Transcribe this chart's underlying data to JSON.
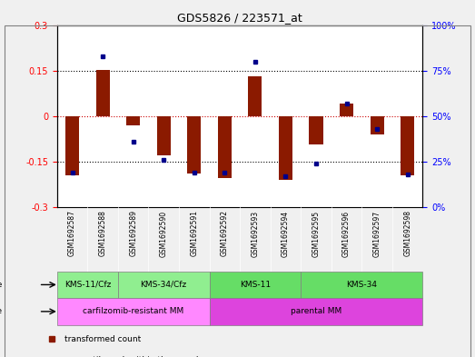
{
  "title": "GDS5826 / 223571_at",
  "samples": [
    "GSM1692587",
    "GSM1692588",
    "GSM1692589",
    "GSM1692590",
    "GSM1692591",
    "GSM1692592",
    "GSM1692593",
    "GSM1692594",
    "GSM1692595",
    "GSM1692596",
    "GSM1692597",
    "GSM1692598"
  ],
  "transformed_counts": [
    -0.195,
    0.152,
    -0.03,
    -0.13,
    -0.19,
    -0.205,
    0.13,
    -0.21,
    -0.095,
    0.04,
    -0.06,
    -0.195
  ],
  "percentile_ranks": [
    19,
    83,
    36,
    26,
    19,
    19,
    80,
    17,
    24,
    57,
    43,
    18
  ],
  "ylim_left": [
    -0.3,
    0.3
  ],
  "ylim_right": [
    0,
    100
  ],
  "yticks_left": [
    -0.3,
    -0.15,
    0,
    0.15,
    0.3
  ],
  "yticks_right": [
    0,
    25,
    50,
    75,
    100
  ],
  "bar_color": "#8B1A00",
  "dot_color": "#00008B",
  "dotted_line_color": "#000000",
  "zero_line_color": "#CC0000",
  "cell_line_groups": [
    {
      "label": "KMS-11/Cfz",
      "start": 0,
      "end": 2,
      "color": "#90EE90"
    },
    {
      "label": "KMS-34/Cfz",
      "start": 2,
      "end": 5,
      "color": "#90EE90"
    },
    {
      "label": "KMS-11",
      "start": 5,
      "end": 8,
      "color": "#66DD66"
    },
    {
      "label": "KMS-34",
      "start": 8,
      "end": 12,
      "color": "#66DD66"
    }
  ],
  "cell_type_groups": [
    {
      "label": "carfilzomib-resistant MM",
      "start": 0,
      "end": 5,
      "color": "#FF88FF"
    },
    {
      "label": "parental MM",
      "start": 5,
      "end": 12,
      "color": "#DD44DD"
    }
  ],
  "bg_color": "#F0F0F0",
  "plot_bg": "#FFFFFF",
  "xtick_bg": "#C8C8C8"
}
